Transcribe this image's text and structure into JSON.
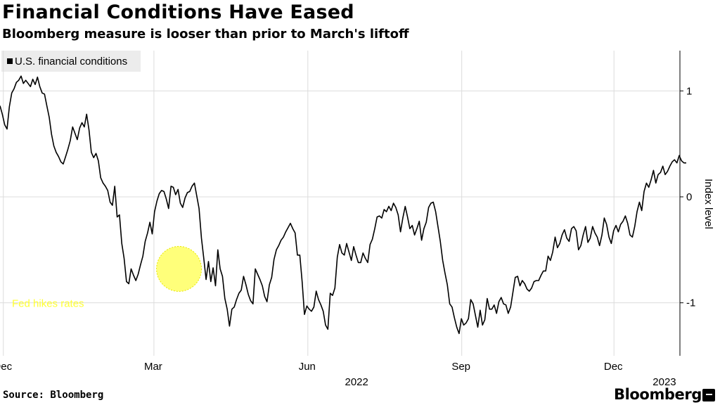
{
  "header": {
    "title": "Financial Conditions Have Eased",
    "subtitle": "Bloomberg measure is looser than prior to March's liftoff"
  },
  "footer": {
    "source": "Source: Bloomberg",
    "brand": "Bloomberg"
  },
  "colors": {
    "line": "#000000",
    "grid": "#dcdcdc",
    "annotation_fill": "#ffff33",
    "annotation_text": "#ffff33",
    "legend_bg": "#ececec"
  },
  "chart_data": {
    "type": "line",
    "title": "Financial Conditions Have Eased",
    "subtitle": "Bloomberg measure is looser than prior to March's liftoff",
    "ylabel": "Index level",
    "xlabel": "",
    "ylim": [
      -1.5,
      1.38
    ],
    "yticks": [
      1,
      0,
      -1
    ],
    "ytick_labels": [
      "1",
      "0",
      "-1"
    ],
    "x_range": [
      "2021-11-29",
      "2023-01-09"
    ],
    "xticks": [
      {
        "label": "Dec",
        "date": "2021-12-01"
      },
      {
        "label": "Mar",
        "date": "2022-03-01"
      },
      {
        "label": "Jun",
        "date": "2022-06-01"
      },
      {
        "label": "Sep",
        "date": "2022-09-01"
      },
      {
        "label": "Dec",
        "date": "2022-12-01"
      }
    ],
    "year_labels": [
      {
        "label": "2022",
        "date": "2022-07-01"
      },
      {
        "label": "2023",
        "date": "2023-01-01"
      }
    ],
    "legend": [
      "U.S. financial conditions"
    ],
    "annotations": [
      {
        "text": "Fed hikes rates",
        "date": "2022-03-16",
        "value": -0.68
      }
    ],
    "series": [
      {
        "name": "U.S. financial conditions",
        "start_date": "2021-11-29",
        "step_days": 1.4,
        "values": [
          0.86,
          0.78,
          0.68,
          0.64,
          0.85,
          0.98,
          1.02,
          1.08,
          1.1,
          1.14,
          1.07,
          1.1,
          1.07,
          1.04,
          1.11,
          1.06,
          1.13,
          1.04,
          0.98,
          0.97,
          0.86,
          0.75,
          0.59,
          0.48,
          0.42,
          0.38,
          0.33,
          0.31,
          0.38,
          0.45,
          0.53,
          0.66,
          0.6,
          0.54,
          0.65,
          0.7,
          0.66,
          0.78,
          0.63,
          0.42,
          0.37,
          0.41,
          0.34,
          0.18,
          0.13,
          0.1,
          0.06,
          -0.05,
          -0.08,
          0.1,
          -0.19,
          -0.17,
          -0.44,
          -0.58,
          -0.8,
          -0.82,
          -0.68,
          -0.74,
          -0.79,
          -0.73,
          -0.64,
          -0.56,
          -0.42,
          -0.34,
          -0.24,
          -0.35,
          -0.14,
          -0.04,
          0.03,
          0.06,
          0.05,
          -0.02,
          -0.11,
          0.1,
          0.09,
          0.02,
          0.07,
          -0.06,
          -0.1,
          -0.01,
          0.04,
          0.05,
          0.1,
          0.13,
          0.01,
          -0.11,
          -0.39,
          -0.58,
          -0.78,
          -0.61,
          -0.8,
          -0.67,
          -0.84,
          -0.5,
          -0.68,
          -0.75,
          -0.96,
          -1.06,
          -1.22,
          -1.06,
          -1.04,
          -0.97,
          -0.91,
          -0.88,
          -0.75,
          -0.83,
          -0.92,
          -0.98,
          -1.01,
          -0.68,
          -0.73,
          -0.78,
          -0.84,
          -0.94,
          -0.99,
          -0.83,
          -0.76,
          -0.59,
          -0.5,
          -0.46,
          -0.41,
          -0.38,
          -0.33,
          -0.29,
          -0.25,
          -0.3,
          -0.34,
          -0.55,
          -0.55,
          -0.8,
          -1.11,
          -1.03,
          -1.06,
          -1.08,
          -1.04,
          -0.89,
          -0.97,
          -1.02,
          -1.08,
          -1.21,
          -1.25,
          -0.91,
          -0.93,
          -0.86,
          -0.57,
          -0.45,
          -0.53,
          -0.55,
          -0.44,
          -0.52,
          -0.6,
          -0.47,
          -0.55,
          -0.62,
          -0.62,
          -0.53,
          -0.58,
          -0.62,
          -0.45,
          -0.4,
          -0.3,
          -0.19,
          -0.18,
          -0.2,
          -0.12,
          -0.14,
          -0.09,
          -0.13,
          -0.06,
          -0.1,
          -0.17,
          -0.33,
          -0.2,
          -0.09,
          -0.19,
          -0.3,
          -0.27,
          -0.36,
          -0.3,
          -0.23,
          -0.41,
          -0.3,
          -0.24,
          -0.1,
          -0.06,
          -0.05,
          -0.14,
          -0.28,
          -0.42,
          -0.6,
          -0.72,
          -0.83,
          -1.01,
          -1.04,
          -1.14,
          -1.23,
          -1.29,
          -1.15,
          -1.21,
          -1.19,
          -1.15,
          -0.97,
          -1.01,
          -1.12,
          -1.23,
          -1.07,
          -1.21,
          -1.16,
          -0.96,
          -1.06,
          -1.06,
          -1.02,
          -1.1,
          -0.99,
          -0.95,
          -1.01,
          -1.02,
          -1.1,
          -1.04,
          -0.9,
          -0.76,
          -0.75,
          -0.84,
          -0.79,
          -0.82,
          -0.87,
          -0.89,
          -0.86,
          -0.8,
          -0.79,
          -0.79,
          -0.74,
          -0.7,
          -0.7,
          -0.56,
          -0.6,
          -0.52,
          -0.38,
          -0.48,
          -0.44,
          -0.36,
          -0.31,
          -0.39,
          -0.42,
          -0.3,
          -0.28,
          -0.32,
          -0.5,
          -0.46,
          -0.36,
          -0.28,
          -0.43,
          -0.39,
          -0.28,
          -0.34,
          -0.38,
          -0.46,
          -0.36,
          -0.2,
          -0.26,
          -0.38,
          -0.44,
          -0.32,
          -0.27,
          -0.33,
          -0.26,
          -0.23,
          -0.18,
          -0.25,
          -0.36,
          -0.38,
          -0.28,
          -0.14,
          -0.05,
          -0.13,
          0.05,
          0.13,
          0.09,
          0.16,
          0.25,
          0.13,
          0.21,
          0.23,
          0.29,
          0.21,
          0.24,
          0.29,
          0.33,
          0.35,
          0.32,
          0.39,
          0.34,
          0.32,
          0.32
        ]
      }
    ]
  }
}
